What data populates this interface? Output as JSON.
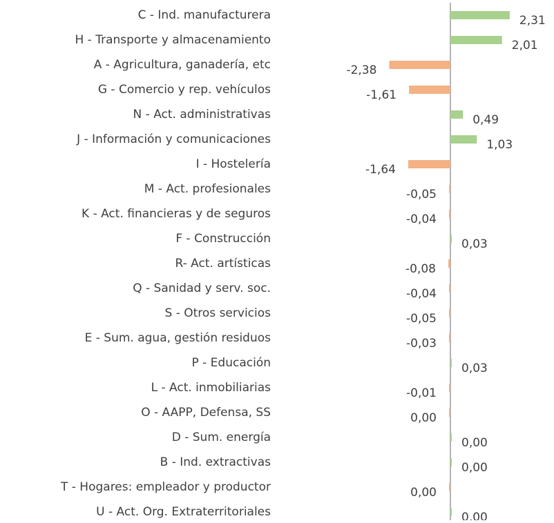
{
  "chart_data": {
    "type": "bar",
    "orientation": "horizontal",
    "categories": [
      "C - Ind. manufacturera",
      "H - Transporte y almacenamiento",
      "A - Agricultura, ganadería, etc",
      "G - Comercio y rep. vehículos",
      "N - Act. administrativas",
      "J - Información y comunicaciones",
      "I - Hostelería",
      "M - Act. profesionales",
      "K - Act. financieras y de seguros",
      "F - Construcción",
      "R-  Act. artísticas",
      "Q - Sanidad y serv. soc.",
      "S - Otros servicios",
      "E - Sum. agua, gestión residuos",
      "P - Educación",
      "L - Act. inmobiliarias",
      "O - AAPP, Defensa, SS",
      "D - Sum. energía ",
      "B - Ind. extractivas",
      "T - Hogares: empleador y productor",
      "U - Act. Org. Extraterritoriales"
    ],
    "values": [
      2.31,
      2.01,
      -2.38,
      -1.61,
      0.49,
      1.03,
      -1.64,
      -0.05,
      -0.04,
      0.03,
      -0.08,
      -0.04,
      -0.05,
      -0.03,
      0.03,
      -0.01,
      0,
      0,
      0,
      0,
      0
    ],
    "value_labels": [
      "2,31",
      "2,01",
      "-2,38",
      "-1,61",
      "0,49",
      "1,03",
      "-1,64",
      "-0,05",
      "-0,04",
      "0,03",
      "-0,08",
      "-0,04",
      "-0,05",
      "-0,03",
      "0,03",
      "-0,01",
      "0,00",
      "0,00",
      "0,00",
      "0,00",
      "0,00"
    ],
    "positive_color": "#a9d18e",
    "negative_color": "#f4b183"
  }
}
